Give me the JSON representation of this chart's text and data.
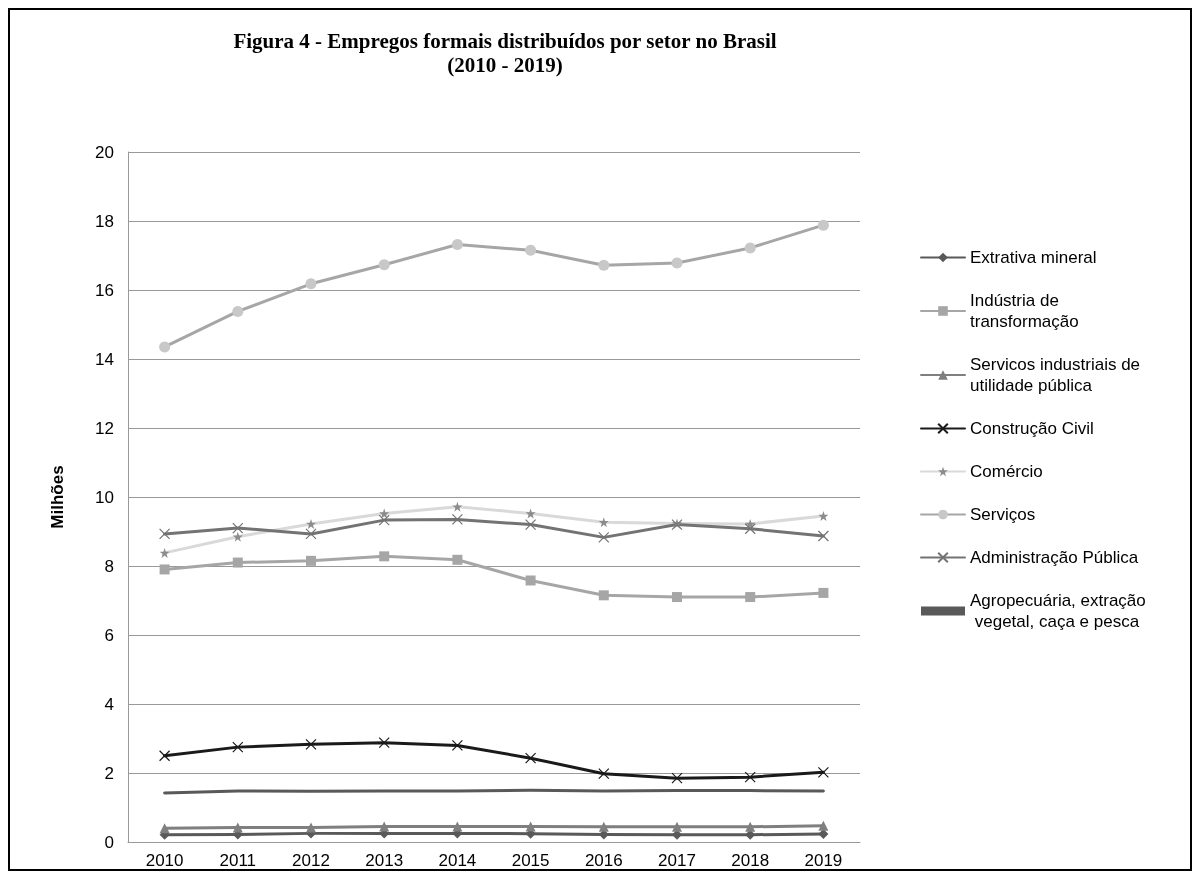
{
  "chart_data": {
    "type": "line",
    "title": "Figura 4 - Empregos formais distribuídos por setor no Brasil\n(2010 - 2019)",
    "ylabel": "Milhões",
    "categories": [
      "2010",
      "2011",
      "2012",
      "2013",
      "2014",
      "2015",
      "2016",
      "2017",
      "2018",
      "2019"
    ],
    "ylim": [
      0,
      20
    ],
    "yticks": [
      0,
      2,
      4,
      6,
      8,
      10,
      12,
      14,
      16,
      18,
      20
    ],
    "grid": "y",
    "legend": "right",
    "series": [
      {
        "name": "Extrativa mineral",
        "color": "#595959",
        "marker": "diamond",
        "values": [
          0.21,
          0.22,
          0.25,
          0.25,
          0.25,
          0.24,
          0.22,
          0.21,
          0.21,
          0.23
        ]
      },
      {
        "name": "Indústria de transformação",
        "color": "#a6a6a6",
        "marker": "square",
        "values": [
          7.9,
          8.1,
          8.15,
          8.28,
          8.18,
          7.58,
          7.15,
          7.1,
          7.1,
          7.22
        ]
      },
      {
        "name": "Servicos industriais de utilidade pública",
        "color": "#7f7f7f",
        "marker": "triangle",
        "values": [
          0.4,
          0.42,
          0.42,
          0.45,
          0.45,
          0.45,
          0.44,
          0.44,
          0.44,
          0.47
        ]
      },
      {
        "name": "Construção Civil",
        "color": "#1a1a1a",
        "marker": "cross",
        "values": [
          2.5,
          2.75,
          2.83,
          2.88,
          2.8,
          2.43,
          1.98,
          1.85,
          1.88,
          2.02
        ]
      },
      {
        "name": "Comércio",
        "color": "#d9d9d9",
        "marker": "star",
        "values": [
          8.38,
          8.85,
          9.22,
          9.52,
          9.72,
          9.52,
          9.27,
          9.23,
          9.22,
          9.45
        ]
      },
      {
        "name": "Serviços",
        "color": "#a6a6a6",
        "marker": "circle",
        "values": [
          14.35,
          15.38,
          16.18,
          16.73,
          17.32,
          17.15,
          16.72,
          16.78,
          17.22,
          17.88
        ]
      },
      {
        "name": "Administração Pública",
        "color": "#737373",
        "marker": "cross",
        "values": [
          8.93,
          9.1,
          8.93,
          9.33,
          9.35,
          9.2,
          8.83,
          9.2,
          9.08,
          8.87
        ]
      },
      {
        "name": "Agropecuária, extração vegetal, caça e pesca",
        "color": "#595959",
        "marker": "none",
        "values": [
          1.42,
          1.48,
          1.47,
          1.48,
          1.48,
          1.5,
          1.48,
          1.49,
          1.49,
          1.48
        ]
      }
    ]
  }
}
